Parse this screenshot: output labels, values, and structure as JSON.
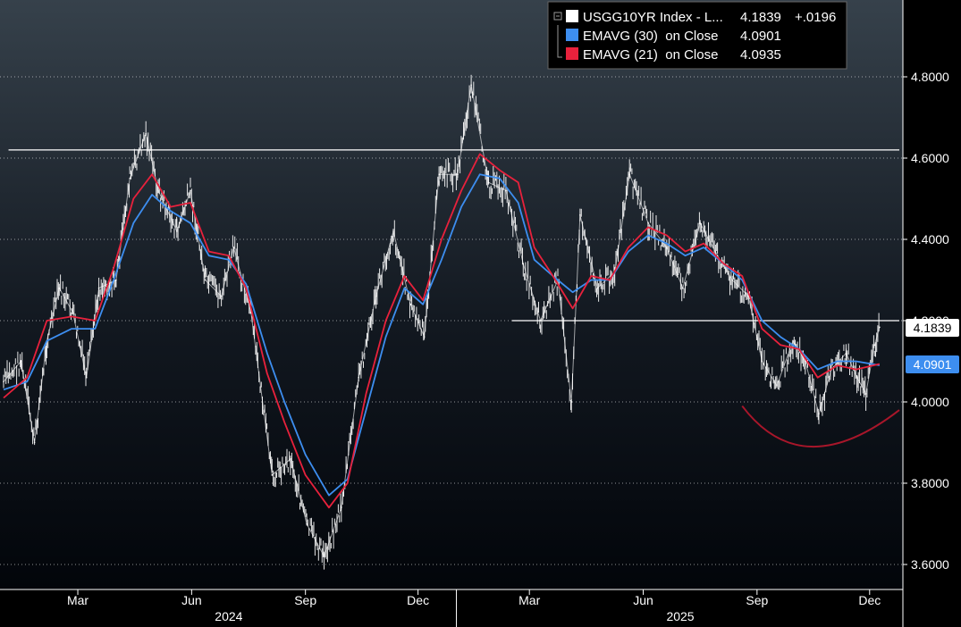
{
  "legend": {
    "items": [
      {
        "label": "USGG10YR Index - L...",
        "value": "4.1839",
        "change": "+.0196",
        "color": "#ffffff"
      },
      {
        "label": "EMAVG (30)  on Close",
        "value": "4.0901",
        "change": "",
        "color": "#3d8ef0"
      },
      {
        "label": "EMAVG (21)  on Close",
        "value": "4.0935",
        "change": "",
        "color": "#e8213c"
      }
    ]
  },
  "price_tags": {
    "last": "4.1839",
    "ema30": "4.0901"
  },
  "chart_data": {
    "type": "line",
    "title": "",
    "xlabel": "",
    "ylabel": "",
    "ylim": [
      3.57,
      4.97
    ],
    "y_ticks": [
      3.6,
      3.8,
      4.0,
      4.2,
      4.4,
      4.6,
      4.8
    ],
    "y_tick_labels": [
      "3.6000",
      "3.8000",
      "4.0000",
      "4.2000",
      "4.4000",
      "4.6000",
      "4.8000"
    ],
    "x_ticks": [
      {
        "date": "2024-03-01",
        "label": "Mar"
      },
      {
        "date": "2024-06-01",
        "label": "Jun"
      },
      {
        "date": "2024-09-01",
        "label": "Sep"
      },
      {
        "date": "2024-12-01",
        "label": "Dec"
      },
      {
        "date": "2025-03-01",
        "label": "Mar"
      },
      {
        "date": "2025-06-01",
        "label": "Jun"
      },
      {
        "date": "2025-09-01",
        "label": "Sep"
      },
      {
        "date": "2025-12-01",
        "label": "Dec"
      }
    ],
    "year_labels": [
      {
        "date": "2024-07-01",
        "label": "2024"
      },
      {
        "date": "2025-07-01",
        "label": "2025"
      }
    ],
    "year_divider_date": "2025-01-01",
    "xlim": [
      "2024-01-01",
      "2025-12-25"
    ],
    "grid": "horizontal dotted",
    "legend_position": "top-right",
    "series": [
      {
        "name": "USGG10YR Index - L...",
        "color": "#ffffff",
        "points": [
          [
            "2024-01-01",
            4.05
          ],
          [
            "2024-01-15",
            4.1
          ],
          [
            "2024-01-26",
            3.9
          ],
          [
            "2024-02-05",
            4.15
          ],
          [
            "2024-02-15",
            4.28
          ],
          [
            "2024-02-26",
            4.22
          ],
          [
            "2024-03-08",
            4.06
          ],
          [
            "2024-03-18",
            4.28
          ],
          [
            "2024-04-01",
            4.3
          ],
          [
            "2024-04-12",
            4.55
          ],
          [
            "2024-04-25",
            4.66
          ],
          [
            "2024-05-05",
            4.52
          ],
          [
            "2024-05-20",
            4.42
          ],
          [
            "2024-05-31",
            4.52
          ],
          [
            "2024-06-12",
            4.3
          ],
          [
            "2024-06-25",
            4.26
          ],
          [
            "2024-07-05",
            4.38
          ],
          [
            "2024-07-19",
            4.22
          ],
          [
            "2024-08-05",
            3.82
          ],
          [
            "2024-08-20",
            3.86
          ],
          [
            "2024-09-02",
            3.7
          ],
          [
            "2024-09-16",
            3.62
          ],
          [
            "2024-09-30",
            3.74
          ],
          [
            "2024-10-14",
            4.06
          ],
          [
            "2024-10-28",
            4.26
          ],
          [
            "2024-11-11",
            4.42
          ],
          [
            "2024-11-25",
            4.24
          ],
          [
            "2024-12-06",
            4.16
          ],
          [
            "2024-12-18",
            4.56
          ],
          [
            "2025-01-02",
            4.56
          ],
          [
            "2025-01-13",
            4.78
          ],
          [
            "2025-01-27",
            4.54
          ],
          [
            "2025-02-10",
            4.52
          ],
          [
            "2025-02-24",
            4.34
          ],
          [
            "2025-03-10",
            4.2
          ],
          [
            "2025-03-24",
            4.3
          ],
          [
            "2025-04-04",
            4.0
          ],
          [
            "2025-04-11",
            4.46
          ],
          [
            "2025-04-25",
            4.28
          ],
          [
            "2025-05-09",
            4.32
          ],
          [
            "2025-05-21",
            4.56
          ],
          [
            "2025-06-05",
            4.44
          ],
          [
            "2025-06-20",
            4.38
          ],
          [
            "2025-07-03",
            4.28
          ],
          [
            "2025-07-17",
            4.44
          ],
          [
            "2025-07-31",
            4.36
          ],
          [
            "2025-08-12",
            4.3
          ],
          [
            "2025-08-25",
            4.26
          ],
          [
            "2025-09-05",
            4.1
          ],
          [
            "2025-09-17",
            4.04
          ],
          [
            "2025-09-30",
            4.15
          ],
          [
            "2025-10-10",
            4.1
          ],
          [
            "2025-10-21",
            3.97
          ],
          [
            "2025-10-31",
            4.08
          ],
          [
            "2025-11-12",
            4.12
          ],
          [
            "2025-11-21",
            4.06
          ],
          [
            "2025-11-28",
            4.02
          ],
          [
            "2025-12-05",
            4.14
          ],
          [
            "2025-12-09",
            4.1839
          ]
        ]
      },
      {
        "name": "EMAVG (30)  on Close",
        "color": "#3d8ef0",
        "points": [
          [
            "2024-01-01",
            4.03
          ],
          [
            "2024-01-20",
            4.05
          ],
          [
            "2024-02-05",
            4.15
          ],
          [
            "2024-02-25",
            4.18
          ],
          [
            "2024-03-15",
            4.18
          ],
          [
            "2024-03-30",
            4.3
          ],
          [
            "2024-04-15",
            4.44
          ],
          [
            "2024-04-30",
            4.51
          ],
          [
            "2024-05-15",
            4.47
          ],
          [
            "2024-05-31",
            4.44
          ],
          [
            "2024-06-15",
            4.36
          ],
          [
            "2024-07-01",
            4.35
          ],
          [
            "2024-07-15",
            4.29
          ],
          [
            "2024-08-01",
            4.12
          ],
          [
            "2024-08-15",
            4.0
          ],
          [
            "2024-09-01",
            3.87
          ],
          [
            "2024-09-20",
            3.77
          ],
          [
            "2024-10-05",
            3.81
          ],
          [
            "2024-10-20",
            3.98
          ],
          [
            "2024-11-05",
            4.16
          ],
          [
            "2024-11-20",
            4.28
          ],
          [
            "2024-12-05",
            4.24
          ],
          [
            "2024-12-20",
            4.35
          ],
          [
            "2025-01-05",
            4.48
          ],
          [
            "2025-01-20",
            4.56
          ],
          [
            "2025-02-05",
            4.55
          ],
          [
            "2025-02-20",
            4.49
          ],
          [
            "2025-03-05",
            4.35
          ],
          [
            "2025-03-20",
            4.31
          ],
          [
            "2025-04-05",
            4.27
          ],
          [
            "2025-04-20",
            4.3
          ],
          [
            "2025-05-05",
            4.3
          ],
          [
            "2025-05-20",
            4.37
          ],
          [
            "2025-06-05",
            4.41
          ],
          [
            "2025-06-20",
            4.39
          ],
          [
            "2025-07-05",
            4.36
          ],
          [
            "2025-07-20",
            4.38
          ],
          [
            "2025-08-05",
            4.34
          ],
          [
            "2025-08-20",
            4.3
          ],
          [
            "2025-09-05",
            4.2
          ],
          [
            "2025-09-20",
            4.16
          ],
          [
            "2025-10-05",
            4.13
          ],
          [
            "2025-10-20",
            4.08
          ],
          [
            "2025-11-05",
            4.1
          ],
          [
            "2025-11-20",
            4.1
          ],
          [
            "2025-12-09",
            4.0901
          ]
        ]
      },
      {
        "name": "EMAVG (21)  on Close",
        "color": "#e8213c",
        "points": [
          [
            "2024-01-01",
            4.01
          ],
          [
            "2024-01-20",
            4.06
          ],
          [
            "2024-02-05",
            4.2
          ],
          [
            "2024-02-25",
            4.21
          ],
          [
            "2024-03-15",
            4.2
          ],
          [
            "2024-03-30",
            4.33
          ],
          [
            "2024-04-15",
            4.5
          ],
          [
            "2024-04-30",
            4.56
          ],
          [
            "2024-05-15",
            4.48
          ],
          [
            "2024-05-31",
            4.49
          ],
          [
            "2024-06-15",
            4.37
          ],
          [
            "2024-07-01",
            4.36
          ],
          [
            "2024-07-15",
            4.28
          ],
          [
            "2024-08-01",
            4.07
          ],
          [
            "2024-08-15",
            3.95
          ],
          [
            "2024-09-01",
            3.82
          ],
          [
            "2024-09-20",
            3.74
          ],
          [
            "2024-10-05",
            3.8
          ],
          [
            "2024-10-20",
            4.02
          ],
          [
            "2024-11-05",
            4.2
          ],
          [
            "2024-11-20",
            4.31
          ],
          [
            "2024-12-05",
            4.25
          ],
          [
            "2024-12-20",
            4.4
          ],
          [
            "2025-01-05",
            4.52
          ],
          [
            "2025-01-20",
            4.61
          ],
          [
            "2025-02-05",
            4.57
          ],
          [
            "2025-02-20",
            4.54
          ],
          [
            "2025-03-05",
            4.38
          ],
          [
            "2025-03-20",
            4.31
          ],
          [
            "2025-04-05",
            4.23
          ],
          [
            "2025-04-20",
            4.31
          ],
          [
            "2025-05-05",
            4.3
          ],
          [
            "2025-05-20",
            4.38
          ],
          [
            "2025-06-05",
            4.43
          ],
          [
            "2025-06-20",
            4.41
          ],
          [
            "2025-07-05",
            4.37
          ],
          [
            "2025-07-20",
            4.39
          ],
          [
            "2025-08-05",
            4.34
          ],
          [
            "2025-08-20",
            4.31
          ],
          [
            "2025-09-05",
            4.18
          ],
          [
            "2025-09-20",
            4.14
          ],
          [
            "2025-10-05",
            4.13
          ],
          [
            "2025-10-20",
            4.06
          ],
          [
            "2025-11-05",
            4.09
          ],
          [
            "2025-11-20",
            4.08
          ],
          [
            "2025-12-09",
            4.0935
          ]
        ]
      }
    ],
    "annotations": [
      {
        "type": "horizontal-line",
        "y": 4.62,
        "from": "2024-01-05",
        "to": "2025-12-25",
        "color": "#ffffff"
      },
      {
        "type": "horizontal-line",
        "y": 4.2,
        "from": "2025-02-15",
        "to": "2025-12-25",
        "color": "#ffffff"
      },
      {
        "type": "arc",
        "from": [
          "2025-08-20",
          3.99
        ],
        "bottom": [
          "2025-10-15",
          3.89
        ],
        "to": [
          "2025-12-25",
          3.98
        ],
        "color": "#a8162a"
      }
    ]
  }
}
